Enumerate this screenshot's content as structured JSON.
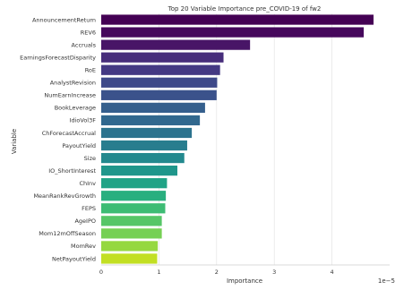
{
  "chart_data": {
    "type": "bar",
    "orientation": "horizontal",
    "title": "Top 20 Variable Importance pre_COVID-19 of fw2",
    "xlabel": "Importance",
    "ylabel": "Variable",
    "x_scale_label": "1e−5",
    "xlim": [
      0,
      5.0
    ],
    "xticks": [
      0,
      1,
      2,
      3,
      4
    ],
    "grid": "vertical",
    "categories": [
      "AnnouncementReturn",
      "REV6",
      "Accruals",
      "EarningsForecastDisparity",
      "RoE",
      "AnalystRevision",
      "NumEarnIncrease",
      "BookLeverage",
      "IdioVol3F",
      "ChForecastAccrual",
      "PayoutYield",
      "Size",
      "IO_ShortInterest",
      "ChInv",
      "MeanRankRevGrowth",
      "FEPS",
      "AgeIPO",
      "Mom12mOffSeason",
      "MomRev",
      "NetPayoutYield"
    ],
    "values": [
      4.72,
      4.55,
      2.58,
      2.12,
      2.06,
      2.01,
      2.0,
      1.8,
      1.71,
      1.57,
      1.49,
      1.44,
      1.32,
      1.14,
      1.12,
      1.11,
      1.05,
      1.05,
      0.98,
      0.97
    ],
    "colors": [
      "#440154",
      "#46085c",
      "#481567",
      "#472d7b",
      "#443983",
      "#3e4989",
      "#3b528b",
      "#355f8d",
      "#31688e",
      "#2c738e",
      "#287d8e",
      "#23898e",
      "#1f968b",
      "#20a386",
      "#29af7f",
      "#3dbc74",
      "#56c667",
      "#75d054",
      "#95d840",
      "#c2df23"
    ]
  }
}
